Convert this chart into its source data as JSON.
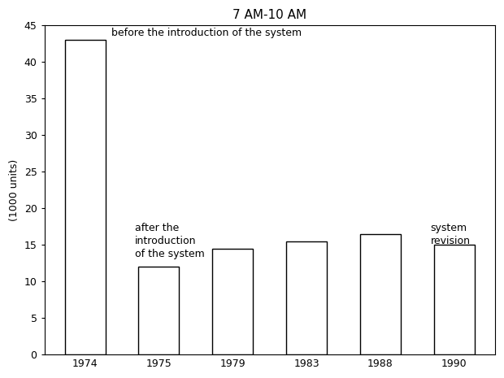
{
  "title": "7 AM-10 AM",
  "categories": [
    "1974",
    "1975",
    "1979",
    "1983",
    "1988",
    "1990"
  ],
  "values": [
    43,
    12,
    14.5,
    15.5,
    16.5,
    15
  ],
  "bar_color": "#ffffff",
  "bar_edgecolor": "#000000",
  "ylabel": "(1000 units)",
  "ylim": [
    0,
    45
  ],
  "yticks": [
    0,
    5,
    10,
    15,
    20,
    25,
    30,
    35,
    40,
    45
  ],
  "annotation_1_text": "before the introduction of the system",
  "annotation_2_text": "after the\nintroduction\nof the system",
  "annotation_3_text": "system\nrevision",
  "title_fontsize": 11,
  "label_fontsize": 9,
  "annotation_fontsize": 9,
  "background_color": "#ffffff"
}
